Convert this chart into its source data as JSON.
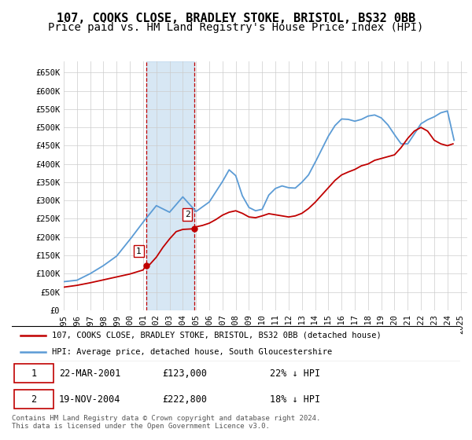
{
  "title": "107, COOKS CLOSE, BRADLEY STOKE, BRISTOL, BS32 0BB",
  "subtitle": "Price paid vs. HM Land Registry's House Price Index (HPI)",
  "title_fontsize": 11,
  "subtitle_fontsize": 10,
  "ylabel_ticks": [
    "£0",
    "£50K",
    "£100K",
    "£150K",
    "£200K",
    "£250K",
    "£300K",
    "£350K",
    "£400K",
    "£450K",
    "£500K",
    "£550K",
    "£600K",
    "£650K"
  ],
  "ytick_values": [
    0,
    50000,
    100000,
    150000,
    200000,
    250000,
    300000,
    350000,
    400000,
    450000,
    500000,
    550000,
    600000,
    650000
  ],
  "ylim": [
    0,
    680000
  ],
  "xlim_start": 1995.0,
  "xlim_end": 2025.5,
  "xtick_years": [
    1995,
    1996,
    1997,
    1998,
    1999,
    2000,
    2001,
    2002,
    2003,
    2004,
    2005,
    2006,
    2007,
    2008,
    2009,
    2010,
    2011,
    2012,
    2013,
    2014,
    2015,
    2016,
    2017,
    2018,
    2019,
    2020,
    2021,
    2022,
    2023,
    2024,
    2025
  ],
  "hpi_color": "#5B9BD5",
  "price_color": "#C00000",
  "shade_color": "#BDD7EE",
  "grid_color": "#CCCCCC",
  "background_color": "#FFFFFF",
  "sale1_date_num": 2001.22,
  "sale1_price": 123000,
  "sale1_label": "1",
  "sale2_date_num": 2004.89,
  "sale2_price": 222800,
  "sale2_label": "2",
  "legend_line1": "107, COOKS CLOSE, BRADLEY STOKE, BRISTOL, BS32 0BB (detached house)",
  "legend_line2": "HPI: Average price, detached house, South Gloucestershire",
  "table_data": [
    [
      "1",
      "22-MAR-2001",
      "£123,000",
      "22% ↓ HPI"
    ],
    [
      "2",
      "19-NOV-2004",
      "£222,800",
      "18% ↓ HPI"
    ]
  ],
  "footer": "Contains HM Land Registry data © Crown copyright and database right 2024.\nThis data is licensed under the Open Government Licence v3.0."
}
